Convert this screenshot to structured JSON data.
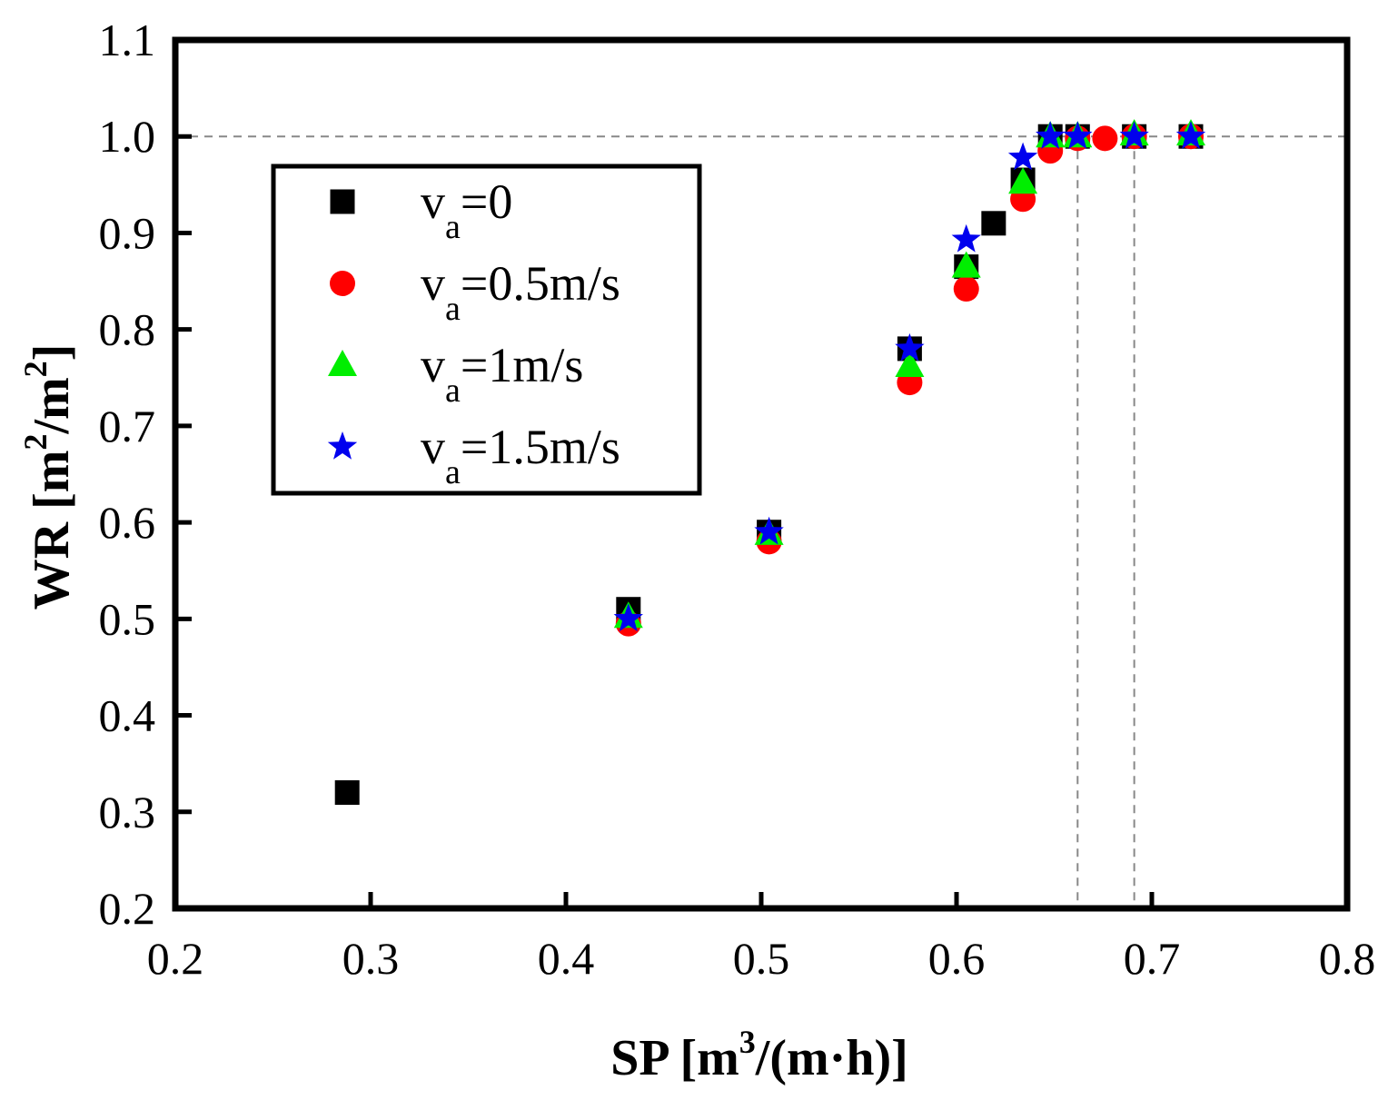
{
  "chart_data": {
    "type": "scatter",
    "xlabel": {
      "main": "SP [m",
      "sup": "3",
      "rest": "/(m·h)]"
    },
    "ylabel": {
      "main": "WR [m",
      "sup1": "2",
      "mid": "/m",
      "sup2": "2",
      "rest": "]"
    },
    "xlim": [
      0.2,
      0.8
    ],
    "ylim": [
      0.2,
      1.1
    ],
    "x_ticks": [
      "0.2",
      "0.3",
      "0.4",
      "0.5",
      "0.6",
      "0.7",
      "0.8"
    ],
    "y_ticks": [
      "0.2",
      "0.3",
      "0.4",
      "0.5",
      "0.6",
      "0.7",
      "0.8",
      "0.9",
      "1.0",
      "1.1"
    ],
    "grid": false,
    "legend_position": "upper-left",
    "reference_lines": [
      {
        "orientation": "horizontal",
        "value": 1.0
      },
      {
        "orientation": "vertical",
        "value": 0.662
      },
      {
        "orientation": "vertical",
        "value": 0.691
      }
    ],
    "series": [
      {
        "name": "v",
        "sub": "a",
        "value": "=0",
        "marker": "square",
        "color": "#000000",
        "x": [
          0.288,
          0.432,
          0.504,
          0.576,
          0.605,
          0.619,
          0.634,
          0.648,
          0.662,
          0.691,
          0.72
        ],
        "y": [
          0.32,
          0.51,
          0.59,
          0.78,
          0.865,
          0.91,
          0.955,
          1.0,
          1.0,
          1.0,
          1.0
        ]
      },
      {
        "name": "v",
        "sub": "a",
        "value": "=0.5m/s",
        "marker": "circle",
        "color": "#ff0000",
        "x": [
          0.432,
          0.504,
          0.576,
          0.605,
          0.634,
          0.648,
          0.662,
          0.676,
          0.691,
          0.72
        ],
        "y": [
          0.495,
          0.58,
          0.745,
          0.842,
          0.935,
          0.985,
          0.998,
          0.998,
          1.0,
          1.0
        ]
      },
      {
        "name": "v",
        "sub": "a",
        "value": "=1m/s",
        "marker": "triangle",
        "color": "#00ee00",
        "x": [
          0.432,
          0.504,
          0.576,
          0.605,
          0.634,
          0.648,
          0.662,
          0.691,
          0.72
        ],
        "y": [
          0.502,
          0.588,
          0.762,
          0.865,
          0.952,
          1.0,
          1.0,
          1.002,
          1.002
        ]
      },
      {
        "name": "v",
        "sub": "a",
        "value": "=1.5m/s",
        "marker": "star",
        "color": "#0000ee",
        "x": [
          0.432,
          0.504,
          0.576,
          0.605,
          0.634,
          0.648,
          0.662,
          0.691,
          0.72
        ],
        "y": [
          0.5,
          0.59,
          0.78,
          0.893,
          0.978,
          1.0,
          1.0,
          1.0,
          1.0
        ]
      }
    ]
  }
}
